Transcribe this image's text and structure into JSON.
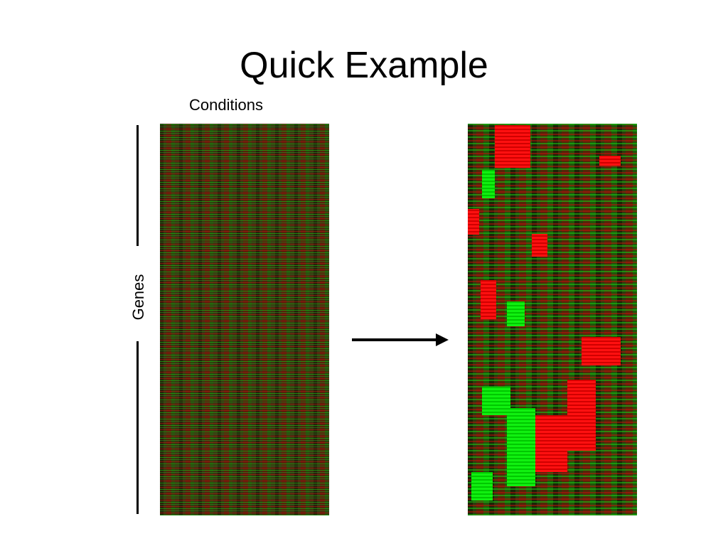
{
  "title": "Quick Example",
  "labels": {
    "conditions": "Conditions",
    "genes": "Genes"
  }
}
